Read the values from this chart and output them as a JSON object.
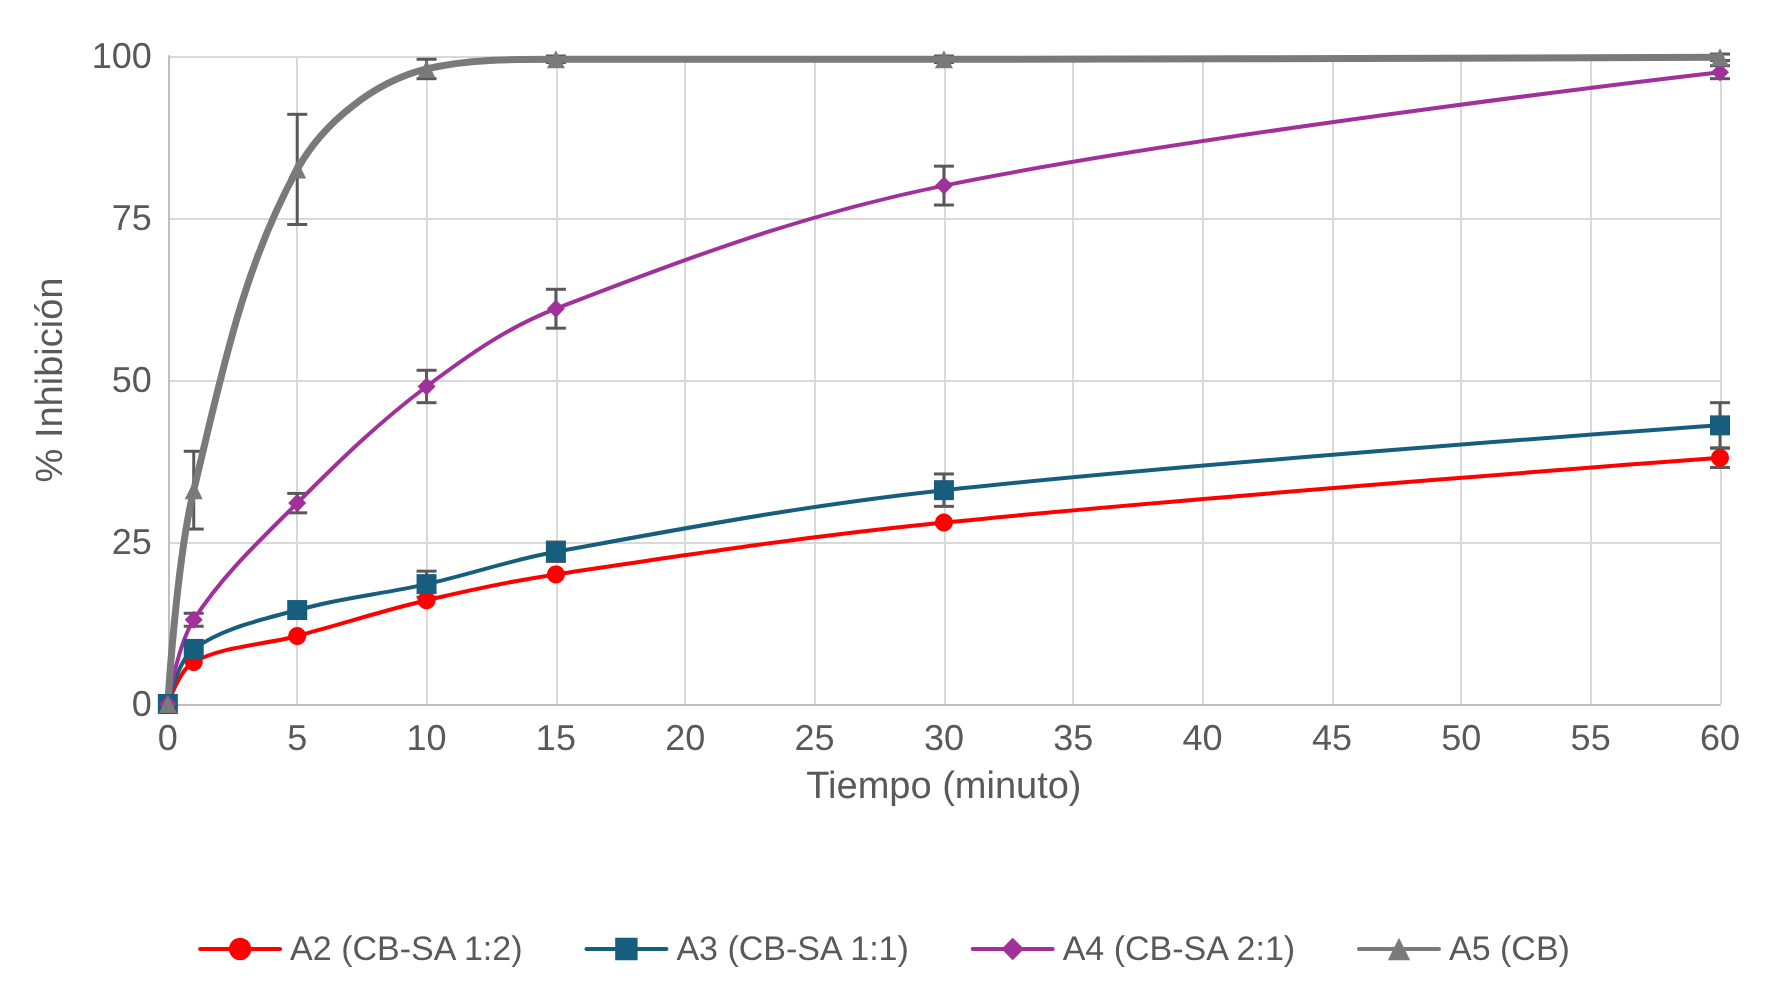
{
  "chart_data": {
    "type": "line",
    "xlabel": "Tiempo (minuto)",
    "ylabel": "% Inhibición",
    "x": [
      0,
      1,
      5,
      10,
      15,
      30,
      60
    ],
    "xlim": [
      0,
      60
    ],
    "xticks": [
      0,
      5,
      10,
      15,
      20,
      25,
      30,
      35,
      40,
      45,
      50,
      55,
      60
    ],
    "ylim": [
      0,
      100
    ],
    "yticks": [
      0,
      25,
      50,
      75,
      100
    ],
    "grid": true,
    "legend": "bottom",
    "series": [
      {
        "name": "A2 (CB-SA 1:2)",
        "color": "#ff0000",
        "marker": "circle",
        "values": [
          0,
          6.5,
          10.5,
          16,
          20,
          28,
          38
        ],
        "errors": [
          null,
          null,
          null,
          null,
          null,
          null,
          1.5
        ]
      },
      {
        "name": "A3 (CB-SA 1:1)",
        "color": "#175e7e",
        "marker": "square",
        "values": [
          0,
          8.5,
          14.5,
          18.5,
          23.5,
          33,
          43
        ],
        "errors": [
          null,
          null,
          null,
          2,
          1.5,
          2.5,
          3.5
        ]
      },
      {
        "name": "A4 (CB-SA 2:1)",
        "color": "#a0309a",
        "marker": "diamond",
        "values": [
          0,
          13,
          31,
          49,
          61,
          80,
          97.5
        ],
        "errors": [
          null,
          1,
          1.5,
          2.5,
          3,
          3,
          1
        ]
      },
      {
        "name": "A5 (CB)",
        "color": "#7a7a7a",
        "marker": "triangle",
        "values": [
          0,
          33,
          82.5,
          98,
          99.5,
          99.5,
          99.8
        ],
        "errors": [
          null,
          6,
          8.5,
          1.5,
          0.5,
          0.5,
          0.5
        ]
      }
    ]
  }
}
